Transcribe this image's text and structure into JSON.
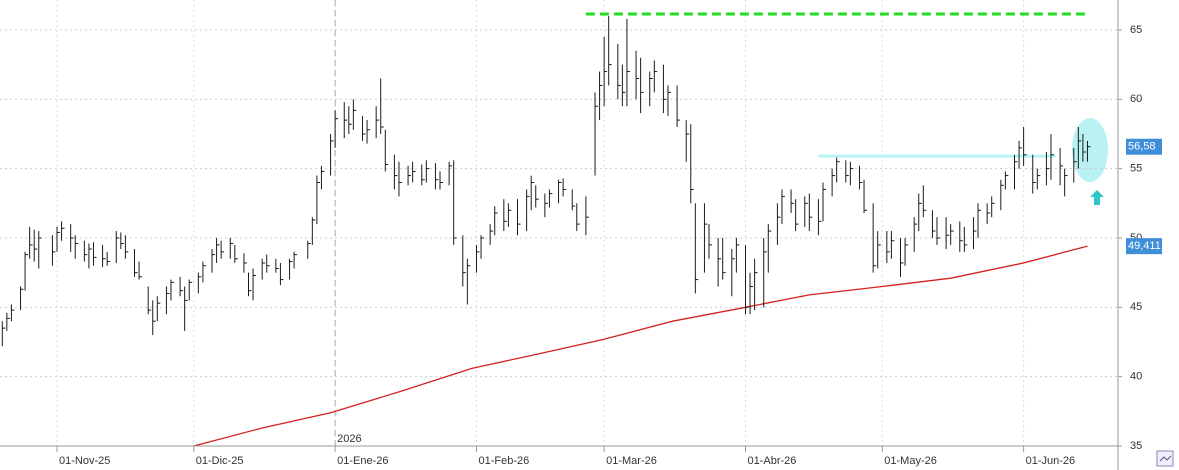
{
  "chart_data": {
    "type": "ohlc",
    "color": "#1a1a1a",
    "x": [
      -12,
      -11,
      -10,
      -8,
      -7,
      -6,
      -5,
      -4,
      -1,
      0,
      1,
      3,
      4,
      6,
      7,
      8,
      10,
      11,
      13,
      14,
      15,
      17,
      18,
      20,
      21,
      22,
      24,
      25,
      27,
      28,
      29,
      31,
      32,
      34,
      35,
      36,
      38,
      39,
      41,
      42,
      43,
      45,
      46,
      48,
      49,
      51,
      52,
      55,
      56,
      57,
      58,
      60,
      61,
      63,
      64,
      65,
      67,
      68,
      70,
      71,
      72,
      74,
      75,
      77,
      78,
      80,
      81,
      83,
      84,
      86,
      87,
      89,
      90,
      92,
      93,
      95,
      96,
      98,
      99,
      101,
      103,
      104,
      105,
      107,
      108,
      110,
      111,
      113,
      114,
      116,
      118,
      119,
      120,
      121,
      123,
      124,
      125,
      127,
      128,
      130,
      131,
      133,
      134,
      136,
      138,
      139,
      140,
      142,
      143,
      145,
      146,
      148,
      149,
      151,
      152,
      153,
      155,
      156,
      158,
      159,
      161,
      162,
      164,
      165,
      167,
      168,
      170,
      171,
      173,
      174,
      176,
      177,
      179,
      180,
      182,
      183,
      185,
      186,
      188,
      189,
      190,
      192,
      193,
      195,
      196,
      198,
      199,
      201,
      202,
      204,
      205,
      207,
      208,
      210,
      211,
      212,
      214,
      215,
      217,
      218,
      220,
      221,
      223,
      224,
      225,
      226
    ],
    "high": [
      44,
      44.6,
      45.2,
      46.5,
      49,
      50.8,
      50.6,
      50.5,
      50.2,
      50.8,
      51.2,
      51,
      50.2,
      49.8,
      49.6,
      49.7,
      49.5,
      49,
      50.5,
      50.4,
      50.2,
      49.2,
      48.3,
      46.5,
      45.5,
      45.8,
      46.5,
      47,
      47.2,
      46.5,
      47,
      47.5,
      48.3,
      49.2,
      50,
      49.8,
      50,
      49.5,
      48.9,
      47.5,
      47.8,
      48.5,
      48.8,
      48.5,
      48.2,
      48.5,
      49,
      49.8,
      51.5,
      54.5,
      55.2,
      57.5,
      59.2,
      59.8,
      59.5,
      60,
      58.8,
      58.5,
      59.5,
      61.5,
      57.8,
      56,
      55.5,
      55.2,
      55.5,
      55.3,
      55.6,
      55.4,
      54.8,
      55.5,
      55.6,
      50.2,
      48.5,
      49.5,
      50.2,
      51,
      52.3,
      52.8,
      52.5,
      52.8,
      53.5,
      54.5,
      53.8,
      53.2,
      53.5,
      54.2,
      54.3,
      53.5,
      52.5,
      53,
      60.5,
      62,
      64.5,
      66,
      64,
      62.5,
      65.8,
      63.5,
      63,
      62,
      62.8,
      62.5,
      61,
      61,
      58.5,
      58.2,
      52.5,
      52.5,
      51,
      50,
      50,
      49.2,
      50,
      49.5,
      47.5,
      48.5,
      50,
      51,
      52.5,
      53.5,
      53.5,
      52.8,
      53,
      53.2,
      52.8,
      54,
      55,
      55.8,
      55.6,
      55.5,
      55.2,
      54.2,
      52.5,
      50.5,
      50.5,
      50.5,
      50,
      50,
      51.5,
      53.2,
      53.8,
      52,
      51.5,
      51.5,
      51,
      51.2,
      50.8,
      51.5,
      52.5,
      52.5,
      53,
      54.2,
      54.8,
      56,
      57,
      58,
      56,
      55,
      56.2,
      57.5,
      56.5,
      55,
      56.5,
      58,
      57.5,
      57
    ],
    "low": [
      42.2,
      43.3,
      44,
      44.8,
      46.2,
      48.5,
      48.3,
      47.8,
      48,
      49,
      49.8,
      49,
      48.5,
      48.3,
      47.8,
      48,
      47.9,
      48,
      48.2,
      49.2,
      48.5,
      47.2,
      47,
      44.5,
      43,
      44,
      44.5,
      45.5,
      45.8,
      43.3,
      45.5,
      46,
      46.8,
      47.5,
      48.2,
      48.5,
      48.5,
      48.2,
      47.5,
      45.8,
      45.5,
      47,
      47.5,
      47.5,
      46.6,
      47,
      47.8,
      48.5,
      49.5,
      51,
      53.5,
      54.5,
      56.5,
      57.2,
      57.5,
      57.8,
      57,
      56.8,
      57.2,
      57.5,
      54.8,
      53.5,
      53,
      53.8,
      54,
      53.8,
      54,
      53.5,
      53.5,
      53.8,
      49.5,
      46.5,
      45.2,
      47.5,
      48.5,
      49.5,
      50.2,
      50.5,
      50.8,
      50.2,
      50.5,
      52,
      52.2,
      51.5,
      52.2,
      52.5,
      53,
      52,
      50.5,
      50.2,
      54.5,
      58.5,
      59.5,
      61,
      60,
      59.5,
      59.5,
      60,
      59,
      59.5,
      60.5,
      59,
      58.8,
      58,
      55.5,
      52.5,
      46,
      47.5,
      48.5,
      46.5,
      47,
      45.8,
      47.5,
      44.5,
      44.5,
      44.8,
      45,
      47.5,
      49.5,
      51,
      51.8,
      50.5,
      50.8,
      50.5,
      50.2,
      51.2,
      53,
      54,
      54,
      53.8,
      53.5,
      51.8,
      47.5,
      47.8,
      48.2,
      48.5,
      47.2,
      48,
      49,
      50.5,
      51.5,
      50,
      49.5,
      49.2,
      49.5,
      49,
      49,
      49.2,
      50,
      51,
      51.5,
      52,
      53.5,
      53.5,
      55,
      55.2,
      53.2,
      53.5,
      53.8,
      54.2,
      53.8,
      53,
      54,
      55,
      55.5,
      55.5
    ],
    "close": [
      43.5,
      44.2,
      44.8,
      46.3,
      48.8,
      49.5,
      49.2,
      50,
      49,
      50.4,
      50.7,
      50,
      49.6,
      48.8,
      49.2,
      48.6,
      48.5,
      48.3,
      50,
      49.6,
      49,
      47.5,
      47.2,
      44.8,
      44,
      45.3,
      46,
      46.8,
      46.2,
      45.5,
      46.8,
      47.2,
      48,
      48.8,
      49.5,
      49,
      49.6,
      48.5,
      48.2,
      46.2,
      47.3,
      48.2,
      48,
      47.8,
      47,
      48.3,
      48.8,
      49.6,
      51.3,
      54,
      54.8,
      57,
      58.6,
      58.5,
      58.2,
      59.2,
      57.5,
      57.8,
      58.5,
      58,
      55.3,
      54.5,
      54,
      54.5,
      54.8,
      54.2,
      55,
      54.2,
      54,
      55.2,
      50,
      47.5,
      48,
      49,
      50,
      50.5,
      51.8,
      51.2,
      52,
      51,
      53,
      54,
      52.8,
      52.5,
      53.2,
      54,
      53.5,
      52.3,
      51,
      51.5,
      59.5,
      61,
      62,
      62.5,
      61,
      60.5,
      62,
      61.5,
      60.5,
      61.5,
      62,
      60,
      60.5,
      58.5,
      57.5,
      53.5,
      47,
      51,
      49.5,
      48.5,
      47.5,
      48.5,
      49.5,
      45,
      46.5,
      47.5,
      49,
      50.5,
      51.5,
      53,
      52.5,
      51,
      52.5,
      51.5,
      51.2,
      53.5,
      54.5,
      55.5,
      54.5,
      55,
      54,
      52,
      48,
      49.5,
      49,
      49.8,
      48.2,
      49.5,
      51,
      52.5,
      52,
      50.5,
      50,
      50.2,
      50.5,
      49.8,
      49.5,
      50.5,
      52,
      51.8,
      52.5,
      53.8,
      54.5,
      55.5,
      56.5,
      56,
      54,
      54.5,
      55,
      56,
      55.2,
      54.5,
      55.5,
      57,
      56.2,
      56.58
    ],
    "close_last_label": "56,58",
    "lines": [
      {
        "x": [
          30,
          45,
          60,
          75,
          91,
          105,
          120,
          135,
          151,
          165,
          181,
          196,
          212,
          226
        ],
        "values": [
          35,
          36.3,
          37.4,
          38.9,
          40.6,
          41.6,
          42.7,
          44,
          45,
          45.9,
          46.5,
          47.1,
          48.2,
          49.411
        ],
        "color": "#d42020",
        "last_label": "49,411"
      }
    ],
    "hlines": [
      {
        "value": 66.15,
        "x": [
          116,
          226
        ],
        "color": "#22dd22",
        "dash": true
      },
      {
        "value": 55.9,
        "x": [
          167,
          219
        ],
        "color": "#b8f3f6",
        "dash": false
      }
    ],
    "xlim": [
      -12.5,
      232.7
    ],
    "ylim": [
      35,
      67.16
    ],
    "yticks": [
      35,
      40,
      45,
      50,
      55,
      60,
      65
    ],
    "xticks": [
      {
        "value": 0,
        "label": "01-Nov-25"
      },
      {
        "value": 30,
        "label": "01-Dic-25"
      },
      {
        "value": 61,
        "label": "01-Ene-26"
      },
      {
        "value": 92,
        "label": "01-Feb-26"
      },
      {
        "value": 120,
        "label": "01-Mar-26"
      },
      {
        "value": 151,
        "label": "01-Abr-26"
      },
      {
        "value": 181,
        "label": "01-May-26"
      },
      {
        "value": 212,
        "label": "01-Jun-26"
      }
    ],
    "year_marker": {
      "value": 61,
      "label": "2026"
    },
    "grid": true
  }
}
